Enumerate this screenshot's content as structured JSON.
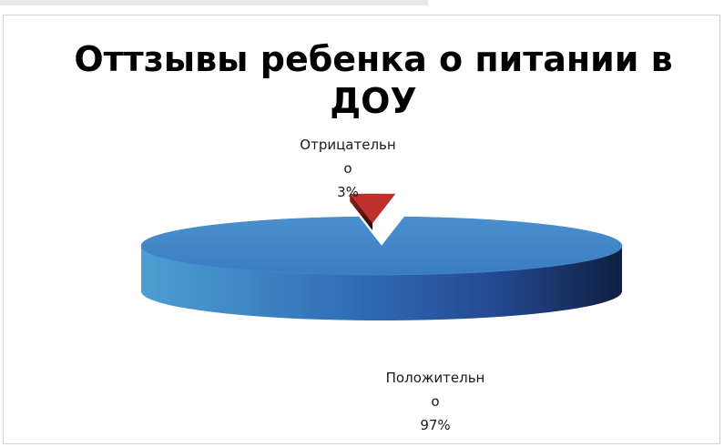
{
  "chart_data": {
    "type": "pie",
    "title": "Оттзывы ребенка о питании в ДОУ",
    "title_lines": [
      "Оттзывы ребенка о питании в",
      "ДОУ"
    ],
    "slices": [
      {
        "label_lines": [
          "Положительн",
          "о"
        ],
        "value": 97,
        "value_label": "97%",
        "color": "#3a7cc1"
      },
      {
        "label_lines": [
          "Отрицательн",
          "о"
        ],
        "value": 3,
        "value_label": "3%",
        "color": "#c0302b"
      }
    ],
    "legend": "none",
    "style": "3d-exploded"
  }
}
